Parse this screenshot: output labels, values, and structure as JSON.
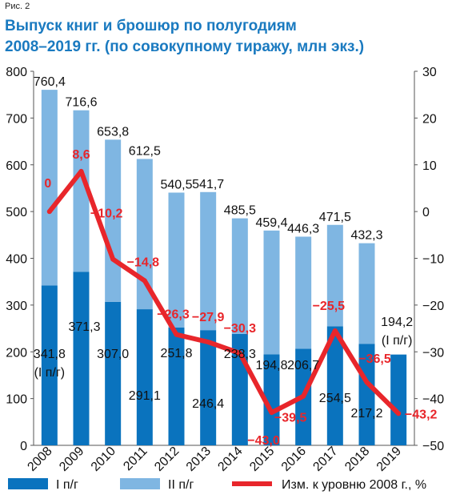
{
  "figure_label": "Рис. 2",
  "title_line1": "Выпуск книг и брошюр по полугодиям",
  "title_line2": "2008–2019 гг. (по совокупному тиражу, млн экз.)",
  "colors": {
    "h1": "#0a73be",
    "h2": "#7fb6e2",
    "line": "#e8262b",
    "title": "#1a7ac0"
  },
  "chart_data": {
    "type": "bar",
    "categories": [
      "2008",
      "2009",
      "2010",
      "2011",
      "2012",
      "2013",
      "2014",
      "2015",
      "2016",
      "2017",
      "2018",
      "2019"
    ],
    "series": [
      {
        "name": "I п/г",
        "values": [
          341.8,
          371.3,
          307.0,
          291.1,
          251.8,
          246.4,
          238.3,
          194.8,
          206.7,
          254.5,
          217.2,
          194.2
        ]
      },
      {
        "name": "II п/г",
        "values": [
          418.6,
          345.3,
          346.8,
          321.4,
          288.7,
          295.3,
          247.2,
          264.6,
          239.6,
          217.0,
          215.1,
          null
        ]
      },
      {
        "name": "Изм. к уровню 2008 г., %",
        "axis": "right",
        "type": "line",
        "values": [
          0,
          8.6,
          -10.2,
          -14.8,
          -26.3,
          -27.9,
          -30.3,
          -43.0,
          -39.5,
          -25.5,
          -36.5,
          -43.2
        ]
      }
    ],
    "totals": [
      760.4,
      716.6,
      653.8,
      612.5,
      540.5,
      541.7,
      485.5,
      459.4,
      446.3,
      471.5,
      432.3,
      null
    ],
    "labels": {
      "h1": [
        "341,8",
        "371,3",
        "307,0",
        "291,1",
        "251,8",
        "246,4",
        "238,3",
        "194,8",
        "206,7",
        "254,5",
        "217,2",
        "194,2"
      ],
      "totals": [
        "760,4",
        "716,6",
        "653,8",
        "612,5",
        "540,5",
        "541,7",
        "485,5",
        "459,4",
        "446,3",
        "471,5",
        "432,3",
        ""
      ],
      "change": [
        "0",
        "8,6",
        "−10,2",
        "−14,8",
        "−26,3",
        "−27,9",
        "−30,3",
        "−43,0",
        "−39,5",
        "−25,5",
        "−36,5",
        "−43,2"
      ],
      "h1_note": "(I п/г)",
      "h1_last_note": "(I п/г)"
    },
    "ylim_left": [
      0,
      800
    ],
    "yticks_left": [
      "0",
      "100",
      "200",
      "300",
      "400",
      "500",
      "600",
      "700",
      "800"
    ],
    "ylim_right": [
      -50,
      30
    ],
    "yticks_right": [
      "−50",
      "−40",
      "−30",
      "−20",
      "−10",
      "0",
      "10",
      "20",
      "30"
    ],
    "legend": {
      "position": "bottom"
    }
  }
}
